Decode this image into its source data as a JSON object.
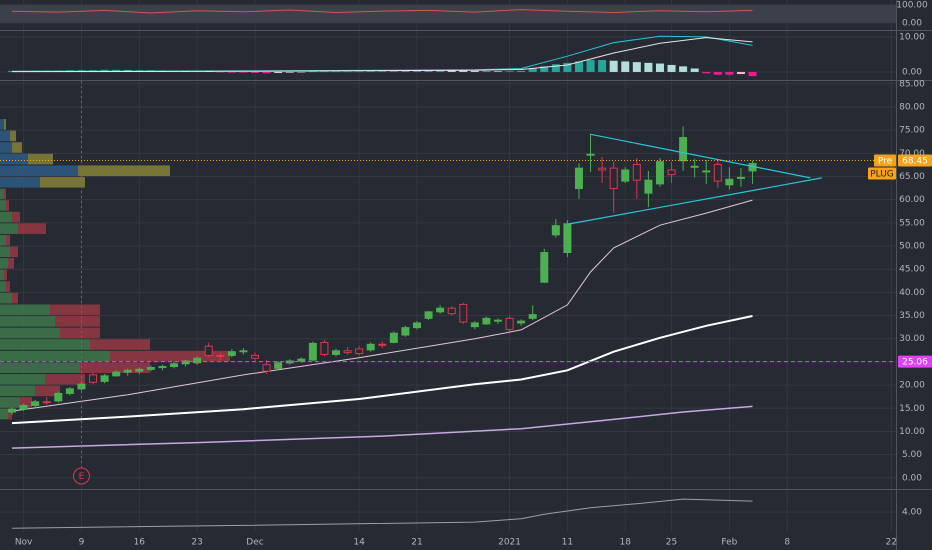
{
  "chart_data": [
    {
      "type": "line",
      "ylim": [
        -40,
        128
      ],
      "yticks": [
        {
          "value": 100,
          "label": "100.00"
        },
        {
          "value": 0,
          "label": "0.00"
        }
      ],
      "band_color": "#3c404b",
      "series": [
        {
          "color": "#d9534f",
          "x": [
            0,
            4,
            8,
            12,
            16,
            20,
            24,
            28,
            32,
            36,
            40,
            44,
            48,
            52,
            56,
            60,
            64
          ],
          "values": [
            65,
            60,
            70,
            55,
            68,
            62,
            72,
            58,
            66,
            70,
            60,
            74,
            65,
            58,
            68,
            62,
            70
          ]
        }
      ]
    },
    {
      "type": "macd",
      "ylim": [
        -2.3,
        11.7
      ],
      "yticks": [
        {
          "value": 10,
          "label": "10.00"
        },
        {
          "value": 0,
          "label": "0.00"
        }
      ],
      "histogram": {
        "colors": {
          "up_rising": "#26a69a",
          "up_falling": "#b2dfdb",
          "down_falling": "#e91e8c",
          "down_rising": "#f8bbd0"
        },
        "values": [
          0.3,
          0.3,
          0.4,
          0.4,
          0.4,
          0.5,
          0.5,
          0.5,
          0.6,
          0.6,
          0.5,
          0.5,
          0.5,
          0.4,
          0.4,
          0.3,
          0.3,
          0.2,
          -0.1,
          -0.2,
          -0.2,
          -0.3,
          -0.4,
          -0.3,
          -0.2,
          -0.1,
          0.1,
          0.1,
          0.1,
          0.1,
          0.1,
          0.2,
          0.2,
          0.2,
          0.3,
          0.4,
          0.5,
          0.6,
          0.5,
          0.4,
          0.3,
          0.3,
          0.2,
          0.2,
          0.3,
          1.0,
          1.6,
          2.2,
          2.6,
          3.0,
          3.4,
          3.4,
          3.2,
          3.0,
          2.8,
          2.6,
          2.4,
          2.0,
          1.6,
          1.0,
          -0.4,
          -0.8,
          -0.8,
          -0.6,
          -1.2
        ]
      },
      "series": [
        {
          "color": "#26c6da",
          "x": [
            0,
            20,
            40,
            44,
            48,
            52,
            56,
            60,
            64
          ],
          "values": [
            0.2,
            0.3,
            0.6,
            1.0,
            4.5,
            8.4,
            10.2,
            10.0,
            7.6
          ]
        },
        {
          "color": "#e6e6e6",
          "x": [
            0,
            20,
            40,
            44,
            48,
            52,
            56,
            60,
            64
          ],
          "values": [
            0.1,
            0.2,
            0.5,
            0.7,
            2.0,
            5.4,
            8.2,
            9.8,
            8.6
          ]
        }
      ]
    },
    {
      "type": "candlestick",
      "xlim": [
        -1.04,
        76.4
      ],
      "ylim": [
        -2.2,
        85.6
      ],
      "xticks": [
        {
          "value": 1,
          "label": "Nov"
        },
        {
          "value": 6,
          "label": "9"
        },
        {
          "value": 11,
          "label": "16"
        },
        {
          "value": 16,
          "label": "23"
        },
        {
          "value": 21,
          "label": "Dec"
        },
        {
          "value": 30,
          "label": "14"
        },
        {
          "value": 35,
          "label": "21"
        },
        {
          "value": 43,
          "label": "2021"
        },
        {
          "value": 48,
          "label": "11"
        },
        {
          "value": 53,
          "label": "18"
        },
        {
          "value": 57,
          "label": "25"
        },
        {
          "value": 62,
          "label": "Feb"
        },
        {
          "value": 67,
          "label": "8"
        },
        {
          "value": 76,
          "label": "22"
        }
      ],
      "yticks": [
        {
          "value": 85,
          "label": "85.00"
        },
        {
          "value": 80,
          "label": "80.00"
        },
        {
          "value": 75,
          "label": "75.00"
        },
        {
          "value": 70,
          "label": "70.00"
        },
        {
          "value": 65,
          "label": "65.00"
        },
        {
          "value": 60,
          "label": "60.00"
        },
        {
          "value": 55,
          "label": "55.00"
        },
        {
          "value": 50,
          "label": "50.00"
        },
        {
          "value": 45,
          "label": "45.00"
        },
        {
          "value": 40,
          "label": "40.00"
        },
        {
          "value": 35,
          "label": "35.00"
        },
        {
          "value": 30,
          "label": "30.00"
        },
        {
          "value": 25,
          "label": "25.00"
        },
        {
          "value": 20,
          "label": "20.00"
        },
        {
          "value": 15,
          "label": "15.00"
        },
        {
          "value": 10,
          "label": "10.00"
        },
        {
          "value": 5,
          "label": "5.00"
        },
        {
          "value": 0,
          "label": "0.00"
        }
      ],
      "colors": {
        "up": "#4caf50",
        "down": "#e0344f"
      },
      "open": [
        14.2,
        14.8,
        15.6,
        16.4,
        16.6,
        18.2,
        19.2,
        22.2,
        20.8,
        22.0,
        22.8,
        23.0,
        23.4,
        23.8,
        24.0,
        24.6,
        24.8,
        28.4,
        26.4,
        26.4,
        27.2,
        26.4,
        24.4,
        23.6,
        24.8,
        25.2,
        25.4,
        29.2,
        26.6,
        27.4,
        27.8,
        27.6,
        28.8,
        29.2,
        30.8,
        32.4,
        34.4,
        35.8,
        36.6,
        37.4,
        32.6,
        33.2,
        33.8,
        34.4,
        33.4,
        34.4,
        42.2,
        52.4,
        48.6,
        62.4,
        69.6,
        66.8,
        66.8,
        64.0,
        67.6,
        61.4,
        63.4,
        66.4,
        68.4,
        67.0,
        66.0,
        67.6,
        63.2,
        64.6,
        66.2
      ],
      "high": [
        15.2,
        16.0,
        16.8,
        17.4,
        18.6,
        19.6,
        20.6,
        22.6,
        22.4,
        23.2,
        23.6,
        23.8,
        24.2,
        24.4,
        25.0,
        25.4,
        26.2,
        29.2,
        27.0,
        27.8,
        28.0,
        27.0,
        25.4,
        25.2,
        25.6,
        26.0,
        29.4,
        29.8,
        27.8,
        28.2,
        28.4,
        29.2,
        29.4,
        31.6,
        32.8,
        33.8,
        36.0,
        37.2,
        37.0,
        37.8,
        33.8,
        34.8,
        34.4,
        35.0,
        34.2,
        37.2,
        49.4,
        55.8,
        55.6,
        67.8,
        74.2,
        69.2,
        68.2,
        67.0,
        69.0,
        66.2,
        69.0,
        68.2,
        75.8,
        68.8,
        68.6,
        68.4,
        67.0,
        66.8,
        68.4
      ],
      "low": [
        13.6,
        14.4,
        15.0,
        15.8,
        16.2,
        17.8,
        18.8,
        20.2,
        20.4,
        21.8,
        22.0,
        22.4,
        23.0,
        23.2,
        23.6,
        24.0,
        24.4,
        26.0,
        25.4,
        26.0,
        26.6,
        25.2,
        22.4,
        23.2,
        24.4,
        24.8,
        25.2,
        26.2,
        26.2,
        26.6,
        26.4,
        27.2,
        28.0,
        29.0,
        30.4,
        32.0,
        34.0,
        35.4,
        35.0,
        33.2,
        32.0,
        33.0,
        33.2,
        31.6,
        32.8,
        34.0,
        42.0,
        51.8,
        47.6,
        60.2,
        66.0,
        63.6,
        57.2,
        63.6,
        60.2,
        58.4,
        62.8,
        63.6,
        66.2,
        64.8,
        63.4,
        62.6,
        62.2,
        62.8,
        63.4
      ],
      "close": [
        14.8,
        15.6,
        16.4,
        16.2,
        18.2,
        19.2,
        20.2,
        20.6,
        22.0,
        22.8,
        23.2,
        23.4,
        23.8,
        24.0,
        24.6,
        25.2,
        25.8,
        26.4,
        26.2,
        27.2,
        27.4,
        25.8,
        23.0,
        24.8,
        25.2,
        25.6,
        29.0,
        26.6,
        27.4,
        27.0,
        26.8,
        28.8,
        28.6,
        31.2,
        32.4,
        33.4,
        35.8,
        36.6,
        35.4,
        33.6,
        33.4,
        34.4,
        34.0,
        32.0,
        33.8,
        35.2,
        48.6,
        54.4,
        54.8,
        66.8,
        69.8,
        66.4,
        62.4,
        66.4,
        64.2,
        64.2,
        68.2,
        65.4,
        73.4,
        67.2,
        66.2,
        64.0,
        64.4,
        64.8,
        67.8
      ],
      "series": [
        {
          "color": "#e3c9d3",
          "width": 1,
          "x": [
            0,
            10,
            20,
            30,
            40,
            44,
            48,
            50,
            52,
            56,
            60,
            64
          ],
          "values": [
            14.4,
            17.9,
            22.2,
            25.9,
            30.0,
            31.9,
            37.3,
            44.4,
            49.6,
            54.5,
            57.1,
            59.9
          ]
        },
        {
          "color": "#ffffff",
          "width": 2,
          "x": [
            0,
            10,
            20,
            30,
            40,
            44,
            48,
            52,
            56,
            60,
            64
          ],
          "values": [
            11.8,
            13.2,
            14.8,
            17.0,
            20.2,
            21.2,
            23.2,
            27.2,
            30.2,
            32.8,
            34.9
          ]
        },
        {
          "color": "#c9a8e0",
          "width": 1.5,
          "x": [
            0,
            16,
            32,
            44,
            52,
            58,
            64
          ],
          "values": [
            6.4,
            7.6,
            9.0,
            10.6,
            12.6,
            14.2,
            15.4
          ]
        }
      ],
      "volume_profile": {
        "xlim": [
          0,
          250
        ],
        "value_area": [
          62.5,
          77.5
        ],
        "colors": {
          "up": "#3f7d4c",
          "down": "#9e3a45",
          "va_up": "#2d5f8a",
          "va_down": "#8c873a"
        },
        "bins": [
          12.5,
          15,
          17.5,
          20,
          22.5,
          25,
          27.5,
          30,
          32.5,
          35,
          37.5,
          40,
          42.5,
          45,
          47.5,
          50,
          52.5,
          55,
          57.5,
          60,
          62.5,
          65,
          67.5,
          70,
          72.5,
          75,
          77.5
        ],
        "up": [
          8,
          20,
          35,
          45,
          80,
          110,
          90,
          60,
          55,
          50,
          12,
          6,
          4,
          8,
          10,
          6,
          18,
          12,
          6,
          4,
          40,
          78,
          28,
          12,
          10,
          4
        ],
        "down": [
          4,
          12,
          25,
          40,
          70,
          120,
          60,
          40,
          45,
          50,
          6,
          4,
          3,
          6,
          8,
          4,
          28,
          8,
          3,
          2,
          45,
          92,
          25,
          10,
          6,
          2
        ]
      },
      "trendlines": [
        {
          "color": "#26c6da",
          "x": [
            50,
            69
          ],
          "y": [
            74.1,
            64.7
          ]
        },
        {
          "color": "#26c6da",
          "x": [
            48,
            70
          ],
          "y": [
            54.7,
            64.7
          ]
        }
      ],
      "price_lines": [
        {
          "value": 68.45,
          "label": "Pre",
          "symbol": "PLUG",
          "color": "#f7a21b",
          "dash": "dotted"
        },
        {
          "value": 25.06,
          "color": "#e040fb",
          "dash": "dashed"
        }
      ],
      "event": {
        "x": 6,
        "label": "E",
        "color": "#e0344f"
      }
    },
    {
      "type": "line",
      "ylim": [
        3.1,
        5.0
      ],
      "yticks": [
        {
          "value": 4,
          "label": "4.00"
        }
      ],
      "series": [
        {
          "color": "#9a9ea8",
          "x": [
            0,
            20,
            40,
            44,
            46,
            50,
            54,
            58,
            64
          ],
          "values": [
            3.27,
            3.4,
            3.55,
            3.7,
            3.9,
            4.2,
            4.38,
            4.59,
            4.5
          ]
        }
      ]
    }
  ]
}
